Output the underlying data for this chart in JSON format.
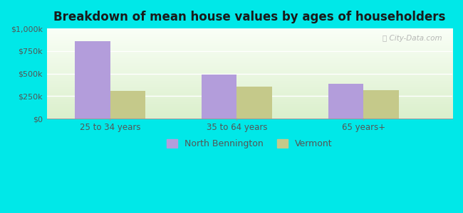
{
  "title": "Breakdown of mean house values by ages of householders",
  "categories": [
    "25 to 34 years",
    "35 to 64 years",
    "65 years+"
  ],
  "north_bennington": [
    857000,
    487000,
    387000
  ],
  "vermont": [
    310000,
    357000,
    320000
  ],
  "bar_color_nb": "#b39ddb",
  "bar_color_vt": "#c5c98a",
  "ylim": [
    0,
    1000000
  ],
  "yticks": [
    0,
    250000,
    500000,
    750000,
    1000000
  ],
  "ytick_labels": [
    "$0",
    "$250k",
    "$500k",
    "$750k",
    "$1,000k"
  ],
  "legend_nb": "North Bennington",
  "legend_vt": "Vermont",
  "background_outer": "#00e8e8",
  "watermark": "City-Data.com",
  "bar_width": 0.28,
  "title_fontsize": 12
}
